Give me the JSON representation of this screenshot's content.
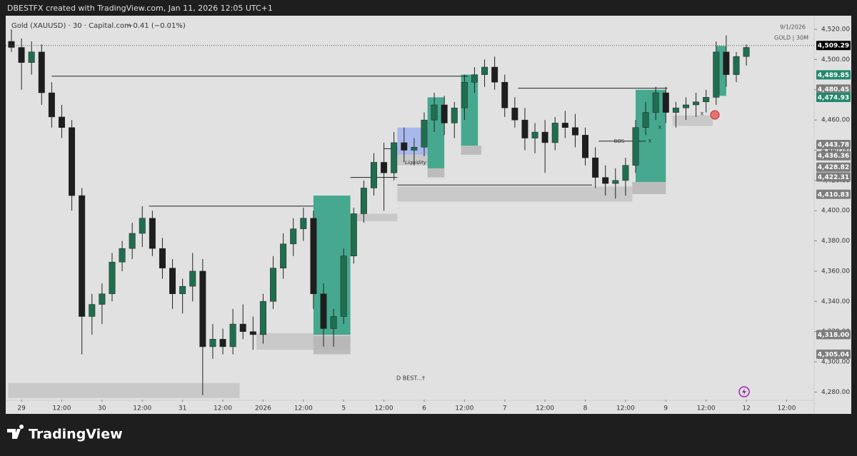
{
  "header": "DBESTFX created with TradingView.com, Jan 11, 2026 12:05 UTC+1",
  "footer_brand": "TradingView",
  "chart_data": {
    "type": "candlestick",
    "symbol_info": "Gold (XAUUSD) · 30 · Capital.com",
    "change": "−0.41 (−0.01%)",
    "date_label": "9/1/2026",
    "watermark": "GOLD | 30M",
    "up_color": "#1f6e50",
    "down_color": "#1e1e1e",
    "x": [
      -3,
      0,
      3,
      6,
      9,
      12,
      15,
      18,
      21,
      24,
      27,
      30,
      33,
      36,
      39,
      42,
      45,
      48,
      51,
      54,
      57,
      60,
      63,
      66,
      69,
      72,
      75,
      78,
      81,
      84,
      87,
      90,
      93,
      96,
      99,
      102,
      105,
      108,
      111,
      114,
      117,
      120,
      123,
      126,
      129,
      132,
      135,
      138,
      141,
      144,
      147,
      150,
      153,
      156,
      159,
      162,
      165,
      168,
      171,
      174,
      177,
      180,
      183,
      186,
      189,
      192,
      195,
      198,
      201,
      204,
      207,
      210,
      213,
      216
    ],
    "open": [
      4512,
      4508,
      4498,
      4505,
      4478,
      4462,
      4455,
      4410,
      4330,
      4338,
      4345,
      4366,
      4375,
      4385,
      4395,
      4375,
      4362,
      4345,
      4350,
      4360,
      4310,
      4315,
      4310,
      4325,
      4320,
      4318,
      4340,
      4362,
      4378,
      4388,
      4395,
      4345,
      4322,
      4330,
      4370,
      4398,
      4415,
      4432,
      4425,
      4445,
      4440,
      4442,
      4460,
      4470,
      4458,
      4468,
      4485,
      4490,
      4495,
      4485,
      4468,
      4460,
      4448,
      4452,
      4445,
      4458,
      4455,
      4450,
      4435,
      4422,
      4418,
      4420,
      4430,
      4455,
      4465,
      4478,
      4465,
      4468,
      4470,
      4472,
      4475,
      4505,
      4490,
      4502
    ],
    "high": [
      4520,
      4514,
      4512,
      4510,
      4485,
      4470,
      4460,
      4415,
      4345,
      4352,
      4372,
      4380,
      4392,
      4403,
      4400,
      4382,
      4368,
      4355,
      4372,
      4368,
      4325,
      4322,
      4335,
      4338,
      4330,
      4345,
      4370,
      4385,
      4395,
      4402,
      4400,
      4352,
      4335,
      4375,
      4402,
      4420,
      4438,
      4445,
      4452,
      4455,
      4448,
      4465,
      4478,
      4476,
      4472,
      4490,
      4495,
      4500,
      4502,
      4490,
      4475,
      4468,
      4458,
      4460,
      4462,
      4466,
      4464,
      4455,
      4442,
      4430,
      4428,
      4435,
      4460,
      4472,
      4482,
      4482,
      4472,
      4475,
      4478,
      4480,
      4512,
      4516,
      4505,
      4510
    ],
    "low": [
      4505,
      4480,
      4490,
      4470,
      4455,
      4448,
      4400,
      4305,
      4318,
      4325,
      4340,
      4360,
      4368,
      4376,
      4370,
      4355,
      4335,
      4332,
      4340,
      4278,
      4302,
      4305,
      4305,
      4315,
      4308,
      4312,
      4335,
      4355,
      4370,
      4380,
      4335,
      4310,
      4310,
      4325,
      4365,
      4392,
      4410,
      4400,
      4420,
      4432,
      4430,
      4436,
      4452,
      4450,
      4448,
      4460,
      4478,
      4482,
      4480,
      4462,
      4455,
      4440,
      4438,
      4425,
      4440,
      4448,
      4442,
      4430,
      4415,
      4410,
      4408,
      4410,
      4425,
      4450,
      4460,
      4458,
      4455,
      4460,
      4462,
      4465,
      4470,
      4482,
      4485,
      4496
    ],
    "close": [
      4508,
      4498,
      4505,
      4478,
      4462,
      4455,
      4410,
      4330,
      4338,
      4345,
      4366,
      4375,
      4385,
      4395,
      4375,
      4362,
      4345,
      4350,
      4360,
      4310,
      4315,
      4310,
      4325,
      4320,
      4318,
      4340,
      4362,
      4378,
      4388,
      4395,
      4345,
      4322,
      4330,
      4370,
      4398,
      4415,
      4432,
      4425,
      4445,
      4440,
      4442,
      4460,
      4470,
      4458,
      4468,
      4485,
      4490,
      4495,
      4485,
      4468,
      4460,
      4448,
      4452,
      4445,
      4458,
      4455,
      4450,
      4435,
      4422,
      4418,
      4420,
      4430,
      4455,
      4465,
      4478,
      4465,
      4468,
      4470,
      4472,
      4475,
      4505,
      4490,
      4502,
      4508
    ],
    "xlim": [
      -4.7,
      236.2
    ],
    "xticks": [
      {
        "value": 0,
        "label": "29"
      },
      {
        "value": 12,
        "label": "12:00"
      },
      {
        "value": 24,
        "label": "30"
      },
      {
        "value": 36,
        "label": "12:00"
      },
      {
        "value": 48,
        "label": "31"
      },
      {
        "value": 60,
        "label": "12:00"
      },
      {
        "value": 72,
        "label": "2026"
      },
      {
        "value": 84,
        "label": "12:00"
      },
      {
        "value": 96,
        "label": "5"
      },
      {
        "value": 108,
        "label": "12:00"
      },
      {
        "value": 120,
        "label": "6"
      },
      {
        "value": 132,
        "label": "12:00"
      },
      {
        "value": 144,
        "label": "7"
      },
      {
        "value": 156,
        "label": "12:00"
      },
      {
        "value": 168,
        "label": "8"
      },
      {
        "value": 180,
        "label": "12:00"
      },
      {
        "value": 192,
        "label": "9"
      },
      {
        "value": 204,
        "label": "12:00"
      },
      {
        "value": 216,
        "label": "12"
      },
      {
        "value": 228,
        "label": "12:00"
      }
    ],
    "ylim": [
      4275,
      4529
    ],
    "yticks": [
      {
        "value": 4280,
        "label": "4,280.00"
      },
      {
        "value": 4300,
        "label": "4,300.00"
      },
      {
        "value": 4320,
        "label": "4,320.00"
      },
      {
        "value": 4340,
        "label": "4,340.00"
      },
      {
        "value": 4360,
        "label": "4,360.00"
      },
      {
        "value": 4380,
        "label": "4,380.00"
      },
      {
        "value": 4400,
        "label": "4,400.00"
      },
      {
        "value": 4420,
        "label": "4,420.00"
      },
      {
        "value": 4440,
        "label": "4,440.00"
      },
      {
        "value": 4460,
        "label": "4,460.00"
      },
      {
        "value": 4480,
        "label": "4,480.00"
      },
      {
        "value": 4500,
        "label": "4,500.00"
      },
      {
        "value": 4520,
        "label": "4,520.00"
      }
    ],
    "current_price": {
      "value": 4509.29,
      "label": "4,509.29",
      "color": "#000000"
    },
    "price_labels": [
      {
        "value": 4489.85,
        "label": "4,489.85",
        "color": "#22886e"
      },
      {
        "value": 4480.45,
        "label": "4,480.45",
        "color": "#7d7d7d"
      },
      {
        "value": 4474.93,
        "label": "4,474.93",
        "color": "#22886e"
      },
      {
        "value": 4443.78,
        "label": "4,443.78",
        "color": "#7d7d7d"
      },
      {
        "value": 4436.36,
        "label": "4,436.36",
        "color": "#7d7d7d"
      },
      {
        "value": 4428.82,
        "label": "4,428.82",
        "color": "#7d7d7d"
      },
      {
        "value": 4422.31,
        "label": "4,422.31",
        "color": "#7d7d7d"
      },
      {
        "value": 4410.83,
        "label": "4,410.83",
        "color": "#7d7d7d"
      },
      {
        "value": 4318.0,
        "label": "4,318.00",
        "color": "#7d7d7d"
      },
      {
        "value": 4305.04,
        "label": "4,305.04",
        "color": "#7d7d7d"
      }
    ],
    "zones": [
      {
        "x": [
          -4,
          65
        ],
        "y": [
          4276,
          4286
        ],
        "color": "#c4c4c4"
      },
      {
        "x": [
          70,
          98
        ],
        "y": [
          4308,
          4319
        ],
        "color": "#c4c4c4"
      },
      {
        "x": [
          87,
          98
        ],
        "y": [
          4305,
          4317
        ],
        "color": "#b5b5b5"
      },
      {
        "x": [
          87,
          98
        ],
        "y": [
          4318,
          4410
        ],
        "color": "#2a9d80"
      },
      {
        "x": [
          99,
          112
        ],
        "y": [
          4393,
          4398
        ],
        "color": "#c4c4c4"
      },
      {
        "x": [
          112,
          182
        ],
        "y": [
          4406,
          4416
        ],
        "color": "#c4c4c4"
      },
      {
        "x": [
          112,
          121
        ],
        "y": [
          4437,
          4455
        ],
        "color": "#9fb0ec"
      },
      {
        "x": [
          112,
          121
        ],
        "y": [
          4430,
          4437
        ],
        "color": "#c4c4c4"
      },
      {
        "x": [
          121,
          126
        ],
        "y": [
          4428,
          4475
        ],
        "color": "#2a9d80"
      },
      {
        "x": [
          121,
          126
        ],
        "y": [
          4422,
          4428
        ],
        "color": "#b5b5b5"
      },
      {
        "x": [
          131,
          136
        ],
        "y": [
          4443,
          4490
        ],
        "color": "#2a9d80"
      },
      {
        "x": [
          131,
          137
        ],
        "y": [
          4437,
          4443
        ],
        "color": "#b5b5b5"
      },
      {
        "x": [
          183,
          192
        ],
        "y": [
          4419,
          4480
        ],
        "color": "#2a9d80"
      },
      {
        "x": [
          182,
          192
        ],
        "y": [
          4411,
          4419
        ],
        "color": "#b5b5b5"
      },
      {
        "x": [
          194,
          206
        ],
        "y": [
          4456,
          4463
        ],
        "color": "#c4c4c4"
      },
      {
        "x": [
          207,
          210
        ],
        "y": [
          4476,
          4509
        ],
        "color": "#2a9d80"
      }
    ],
    "levels": [
      {
        "x": [
          9,
          133
        ],
        "y": 4489
      },
      {
        "x": [
          38,
          87
        ],
        "y": 4403
      },
      {
        "x": [
          98,
          112
        ],
        "y": 4422
      },
      {
        "x": [
          108,
          112
        ],
        "y": 4441
      },
      {
        "x": [
          112,
          170
        ],
        "y": 4417
      },
      {
        "x": [
          148,
          192.5
        ],
        "y": 4481
      },
      {
        "x": [
          172,
          186
        ],
        "y": 4446
      }
    ],
    "annotations": [
      "Liquidity",
      "BOS",
      "D BEST...†",
      "x",
      "x",
      "x"
    ]
  }
}
